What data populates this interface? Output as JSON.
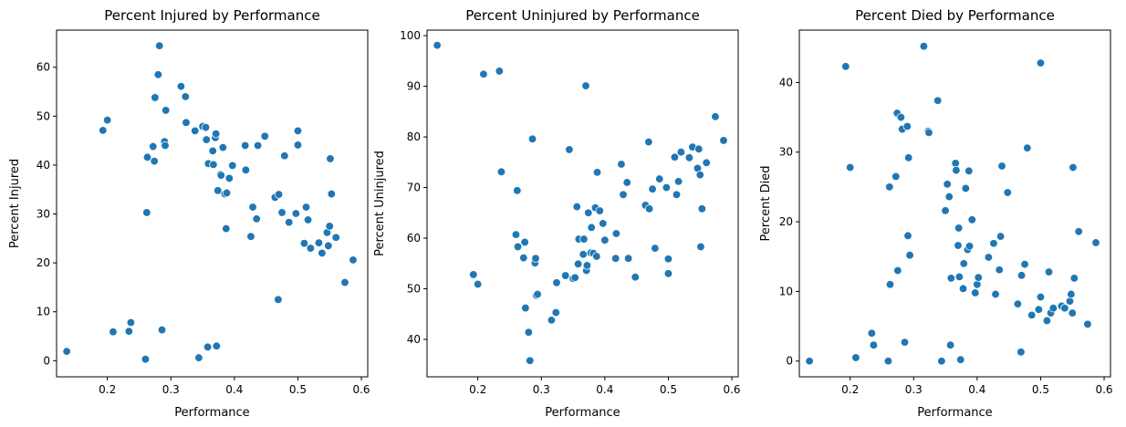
{
  "colors": {
    "point": "#1f77b4",
    "background": "#ffffff",
    "axes": "#000000"
  },
  "chart_data": [
    {
      "type": "scatter",
      "title": "Percent Injured by Performance",
      "xlabel": "Performance",
      "ylabel": "Percent Injured",
      "xlim": [
        0.12,
        0.61
      ],
      "ylim": [
        -3.3,
        67.6
      ],
      "xticks": [
        0.2,
        0.3,
        0.4,
        0.5,
        0.6
      ],
      "xtick_labels": [
        "0.2",
        "0.3",
        "0.4",
        "0.5",
        "0.6"
      ],
      "yticks": [
        0,
        10,
        20,
        30,
        40,
        50,
        60
      ],
      "ytick_labels": [
        "0",
        "10",
        "20",
        "30",
        "40",
        "50",
        "60"
      ],
      "grid": false,
      "legend": false,
      "points": [
        [
          0.136,
          1.9
        ],
        [
          0.193,
          47.1
        ],
        [
          0.2,
          49.2
        ],
        [
          0.209,
          5.9
        ],
        [
          0.234,
          6.0
        ],
        [
          0.237,
          7.8
        ],
        [
          0.26,
          0.3
        ],
        [
          0.262,
          30.3
        ],
        [
          0.263,
          41.6
        ],
        [
          0.272,
          43.8
        ],
        [
          0.274,
          40.8
        ],
        [
          0.275,
          53.8
        ],
        [
          0.28,
          58.5
        ],
        [
          0.282,
          64.4
        ],
        [
          0.286,
          6.3
        ],
        [
          0.29,
          44.8
        ],
        [
          0.291,
          44.0
        ],
        [
          0.292,
          51.2
        ],
        [
          0.316,
          56.1
        ],
        [
          0.323,
          54.0
        ],
        [
          0.324,
          48.7
        ],
        [
          0.338,
          47.0
        ],
        [
          0.344,
          0.6
        ],
        [
          0.35,
          47.9
        ],
        [
          0.355,
          47.7
        ],
        [
          0.356,
          45.2
        ],
        [
          0.358,
          2.8
        ],
        [
          0.359,
          40.3
        ],
        [
          0.366,
          42.9
        ],
        [
          0.367,
          40.1
        ],
        [
          0.37,
          45.6
        ],
        [
          0.371,
          46.4
        ],
        [
          0.372,
          3.0
        ],
        [
          0.374,
          34.8
        ],
        [
          0.378,
          38.1
        ],
        [
          0.379,
          37.9
        ],
        [
          0.382,
          43.6
        ],
        [
          0.385,
          34.1
        ],
        [
          0.387,
          27.0
        ],
        [
          0.388,
          34.3
        ],
        [
          0.392,
          37.3
        ],
        [
          0.397,
          39.9
        ],
        [
          0.417,
          44.0
        ],
        [
          0.418,
          39.0
        ],
        [
          0.426,
          25.4
        ],
        [
          0.429,
          31.4
        ],
        [
          0.435,
          29.0
        ],
        [
          0.437,
          44.0
        ],
        [
          0.448,
          45.9
        ],
        [
          0.464,
          33.4
        ],
        [
          0.469,
          12.5
        ],
        [
          0.47,
          34.0
        ],
        [
          0.475,
          30.3
        ],
        [
          0.479,
          41.9
        ],
        [
          0.486,
          28.3
        ],
        [
          0.497,
          30.1
        ],
        [
          0.5,
          47.0
        ],
        [
          0.5,
          44.1
        ],
        [
          0.51,
          24.0
        ],
        [
          0.513,
          31.4
        ],
        [
          0.516,
          28.8
        ],
        [
          0.52,
          23.0
        ],
        [
          0.533,
          24.1
        ],
        [
          0.538,
          22.0
        ],
        [
          0.546,
          26.2
        ],
        [
          0.548,
          23.5
        ],
        [
          0.55,
          27.5
        ],
        [
          0.551,
          41.3
        ],
        [
          0.553,
          34.1
        ],
        [
          0.56,
          25.2
        ],
        [
          0.574,
          16.0
        ],
        [
          0.587,
          20.6
        ]
      ]
    },
    {
      "type": "scatter",
      "title": "Percent Uninjured by Performance",
      "xlabel": "Performance",
      "ylabel": "Percent Uninjured",
      "xlim": [
        0.12,
        0.61
      ],
      "ylim": [
        32.6,
        101.1
      ],
      "xticks": [
        0.2,
        0.3,
        0.4,
        0.5,
        0.6
      ],
      "xtick_labels": [
        "0.2",
        "0.3",
        "0.4",
        "0.5",
        "0.6"
      ],
      "yticks": [
        40,
        50,
        60,
        70,
        80,
        90,
        100
      ],
      "ytick_labels": [
        "40",
        "50",
        "60",
        "70",
        "80",
        "90",
        "100"
      ],
      "grid": false,
      "legend": false,
      "points": [
        [
          0.136,
          98.1
        ],
        [
          0.193,
          52.8
        ],
        [
          0.2,
          50.9
        ],
        [
          0.209,
          92.4
        ],
        [
          0.234,
          93.0
        ],
        [
          0.237,
          73.1
        ],
        [
          0.26,
          60.7
        ],
        [
          0.262,
          69.4
        ],
        [
          0.263,
          58.3
        ],
        [
          0.272,
          56.1
        ],
        [
          0.274,
          59.2
        ],
        [
          0.275,
          46.2
        ],
        [
          0.28,
          41.4
        ],
        [
          0.282,
          35.8
        ],
        [
          0.286,
          79.6
        ],
        [
          0.29,
          55.1
        ],
        [
          0.291,
          56.0
        ],
        [
          0.292,
          48.7
        ],
        [
          0.294,
          48.9
        ],
        [
          0.316,
          43.8
        ],
        [
          0.323,
          45.3
        ],
        [
          0.324,
          51.2
        ],
        [
          0.338,
          52.6
        ],
        [
          0.344,
          77.5
        ],
        [
          0.35,
          52.0
        ],
        [
          0.353,
          52.2
        ],
        [
          0.356,
          66.2
        ],
        [
          0.358,
          54.9
        ],
        [
          0.359,
          59.8
        ],
        [
          0.366,
          56.8
        ],
        [
          0.367,
          59.8
        ],
        [
          0.37,
          90.1
        ],
        [
          0.371,
          53.6
        ],
        [
          0.372,
          54.6
        ],
        [
          0.374,
          65.0
        ],
        [
          0.378,
          57.1
        ],
        [
          0.379,
          62.1
        ],
        [
          0.382,
          57.0
        ],
        [
          0.385,
          66.0
        ],
        [
          0.387,
          56.4
        ],
        [
          0.388,
          73.0
        ],
        [
          0.392,
          65.4
        ],
        [
          0.397,
          62.9
        ],
        [
          0.4,
          59.6
        ],
        [
          0.417,
          56.0
        ],
        [
          0.418,
          60.9
        ],
        [
          0.426,
          74.6
        ],
        [
          0.429,
          68.6
        ],
        [
          0.435,
          71.0
        ],
        [
          0.437,
          56.0
        ],
        [
          0.448,
          52.3
        ],
        [
          0.464,
          66.5
        ],
        [
          0.469,
          79.0
        ],
        [
          0.47,
          65.8
        ],
        [
          0.475,
          69.7
        ],
        [
          0.479,
          58.0
        ],
        [
          0.486,
          71.7
        ],
        [
          0.497,
          70.0
        ],
        [
          0.5,
          53.0
        ],
        [
          0.5,
          55.9
        ],
        [
          0.51,
          76.0
        ],
        [
          0.513,
          68.6
        ],
        [
          0.516,
          71.2
        ],
        [
          0.52,
          77.0
        ],
        [
          0.533,
          75.9
        ],
        [
          0.538,
          78.0
        ],
        [
          0.546,
          73.8
        ],
        [
          0.548,
          77.6
        ],
        [
          0.55,
          72.5
        ],
        [
          0.551,
          58.3
        ],
        [
          0.553,
          65.8
        ],
        [
          0.56,
          74.9
        ],
        [
          0.574,
          84.0
        ],
        [
          0.587,
          79.3
        ]
      ]
    },
    {
      "type": "scatter",
      "title": "Percent Died by Performance",
      "xlabel": "Performance",
      "ylabel": "Percent Died",
      "xlim": [
        0.12,
        0.61
      ],
      "ylim": [
        -2.26,
        47.52
      ],
      "xticks": [
        0.2,
        0.3,
        0.4,
        0.5,
        0.6
      ],
      "xtick_labels": [
        "0.2",
        "0.3",
        "0.4",
        "0.5",
        "0.6"
      ],
      "yticks": [
        0,
        10,
        20,
        30,
        40
      ],
      "ytick_labels": [
        "0",
        "10",
        "20",
        "30",
        "40"
      ],
      "grid": false,
      "legend": false,
      "points": [
        [
          0.136,
          0.0
        ],
        [
          0.193,
          42.3
        ],
        [
          0.2,
          27.8
        ],
        [
          0.209,
          0.5
        ],
        [
          0.234,
          4.0
        ],
        [
          0.237,
          2.3
        ],
        [
          0.26,
          0.0
        ],
        [
          0.262,
          25.0
        ],
        [
          0.263,
          11.0
        ],
        [
          0.272,
          26.5
        ],
        [
          0.274,
          35.6
        ],
        [
          0.275,
          13.0
        ],
        [
          0.28,
          35.0
        ],
        [
          0.282,
          33.3
        ],
        [
          0.286,
          2.7
        ],
        [
          0.29,
          33.7
        ],
        [
          0.291,
          18.0
        ],
        [
          0.292,
          29.2
        ],
        [
          0.294,
          15.2
        ],
        [
          0.316,
          45.2
        ],
        [
          0.323,
          33.0
        ],
        [
          0.324,
          32.8
        ],
        [
          0.338,
          37.4
        ],
        [
          0.344,
          0.0
        ],
        [
          0.35,
          21.6
        ],
        [
          0.353,
          25.4
        ],
        [
          0.356,
          23.6
        ],
        [
          0.358,
          2.3
        ],
        [
          0.359,
          11.9
        ],
        [
          0.366,
          28.4
        ],
        [
          0.367,
          27.4
        ],
        [
          0.37,
          16.6
        ],
        [
          0.371,
          19.1
        ],
        [
          0.372,
          12.1
        ],
        [
          0.374,
          0.2
        ],
        [
          0.378,
          10.4
        ],
        [
          0.379,
          14.0
        ],
        [
          0.382,
          24.8
        ],
        [
          0.385,
          16.0
        ],
        [
          0.387,
          27.3
        ],
        [
          0.388,
          16.5
        ],
        [
          0.392,
          20.3
        ],
        [
          0.397,
          9.8
        ],
        [
          0.4,
          11.0
        ],
        [
          0.402,
          12.0
        ],
        [
          0.418,
          14.9
        ],
        [
          0.426,
          16.9
        ],
        [
          0.429,
          9.6
        ],
        [
          0.435,
          13.1
        ],
        [
          0.437,
          17.9
        ],
        [
          0.439,
          28.0
        ],
        [
          0.448,
          24.2
        ],
        [
          0.464,
          8.2
        ],
        [
          0.469,
          1.3
        ],
        [
          0.47,
          12.3
        ],
        [
          0.475,
          13.9
        ],
        [
          0.479,
          30.6
        ],
        [
          0.486,
          6.6
        ],
        [
          0.497,
          7.4
        ],
        [
          0.5,
          42.8
        ],
        [
          0.5,
          9.2
        ],
        [
          0.51,
          5.8
        ],
        [
          0.513,
          12.8
        ],
        [
          0.516,
          6.9
        ],
        [
          0.52,
          7.6
        ],
        [
          0.533,
          7.9
        ],
        [
          0.538,
          7.6
        ],
        [
          0.546,
          8.6
        ],
        [
          0.548,
          9.6
        ],
        [
          0.55,
          6.9
        ],
        [
          0.551,
          27.8
        ],
        [
          0.553,
          11.9
        ],
        [
          0.56,
          18.6
        ],
        [
          0.574,
          5.3
        ],
        [
          0.587,
          17.0
        ]
      ]
    }
  ]
}
